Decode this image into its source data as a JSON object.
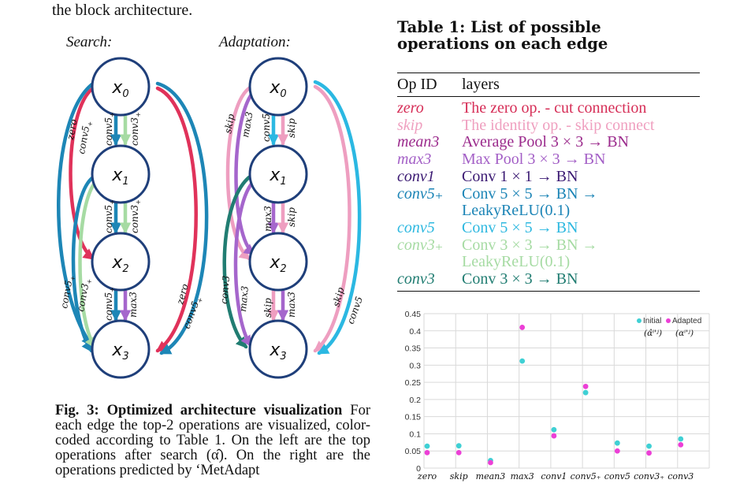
{
  "top_text": "the block architecture.",
  "diagram": {
    "search_label": "Search:",
    "adaptation_label": "Adaptation:",
    "nodes": [
      "x",
      "x",
      "x",
      "x"
    ],
    "node_subs": [
      "0",
      "1",
      "2",
      "3"
    ],
    "search_edges": {
      "e01_left": "conv5",
      "e01_left_sub": "+",
      "e01_right": "conv3",
      "e01_right_sub": "+",
      "e12_left": "conv5",
      "e12_left_sub": "+",
      "e12_right": "conv3",
      "e12_right_sub": "+",
      "e23_left": "conv5",
      "e23_left_sub": "+",
      "e23_right": "max3",
      "far_left_1": "zero",
      "far_left_2": "conv5",
      "far_left_2_sub": "+",
      "left_lower_1": "conv5",
      "left_lower_1_sub": "+",
      "left_lower_2": "conv3",
      "left_lower_2_sub": "+",
      "right_1": "zero",
      "right_2": "conv5",
      "right_2_sub": "+"
    },
    "adapt_edges": {
      "far_left_1": "skip",
      "far_left_2": "max3",
      "e01_left": "conv5",
      "e01_right": "skip",
      "e12_left": "max3",
      "e12_right": "skip",
      "left_lower_1": "conv3",
      "left_lower_2": "max3",
      "e23_left": "skip",
      "e23_right": "max3",
      "right_1": "skip",
      "right_2": "conv5"
    },
    "colors": {
      "zero": "#e0325a",
      "skip": "#ee9ec0",
      "max3": "#a566cc",
      "conv5plus": "#1d86b6",
      "conv5": "#2bb8e2",
      "conv3plus": "#a6dba3",
      "conv3": "#217d72",
      "node_stroke": "#1f3f7a"
    }
  },
  "caption": {
    "bold": "Fig. 3: Optimized architecture visualization",
    "text": " For each edge the top-2 operations are visualized, color-coded according to Table 1. On the left are the top operations after search (α̂). On the right are the operations predicted by ‘MetAdapt"
  },
  "table": {
    "title": "Table 1: List of possible operations on each edge",
    "header_op": "Op ID",
    "header_layers": "layers",
    "rows": [
      {
        "id": "zero",
        "layers": "The zero op. - cut connection",
        "color": "#d62e57"
      },
      {
        "id": "skip",
        "layers": "The identity op. - skip connect",
        "color": "#ef9fbf"
      },
      {
        "id": "mean3",
        "layers": "Average Pool 3 × 3 → BN",
        "color": "#9b2a8c"
      },
      {
        "id": "max3",
        "layers": "Max Pool 3 × 3 → BN",
        "color": "#a35fc6"
      },
      {
        "id": "conv1",
        "layers": "Conv 1 × 1 → BN",
        "color": "#3b1a73"
      },
      {
        "id": "conv5₊",
        "layers": "Conv 5 × 5 → BN →",
        "color": "#1b84b6"
      },
      {
        "id": "",
        "layers": "LeakyReLU(0.1)",
        "color": "#1b84b6"
      },
      {
        "id": "conv5",
        "layers": "Conv 5 × 5 → BN",
        "color": "#2db8e0"
      },
      {
        "id": "conv3₊",
        "layers": "Conv 3 × 3 → BN →",
        "color": "#a6dba3"
      },
      {
        "id": "",
        "layers": "LeakyReLU(0.1)",
        "color": "#a6dba3"
      },
      {
        "id": "conv3",
        "layers": "Conv 3 × 3 → BN",
        "color": "#217d72"
      }
    ]
  },
  "chart_data": {
    "type": "scatter",
    "categories": [
      "zero",
      "skip",
      "mean3",
      "max3",
      "conv1",
      "conv5₊",
      "conv5",
      "conv3₊",
      "conv3"
    ],
    "series": [
      {
        "name": "Initial",
        "sub": "(α̂ⁱ'ʲ)",
        "color": "#3fd0d4",
        "values": [
          0.064,
          0.065,
          0.022,
          0.312,
          0.112,
          0.22,
          0.073,
          0.064,
          0.085
        ]
      },
      {
        "name": "Adapted",
        "sub": "(αⁱ'ʲ)",
        "color": "#ec3fd6",
        "values": [
          0.045,
          0.045,
          0.016,
          0.41,
          0.094,
          0.238,
          0.05,
          0.044,
          0.068
        ]
      }
    ],
    "ylim": [
      0,
      0.45
    ],
    "yticks": [
      "0",
      "0.05",
      "0.1",
      "0.15",
      "0.2",
      "0.25",
      "0.3",
      "0.35",
      "0.4",
      "0.45"
    ],
    "grid": true,
    "legend": "top-right"
  }
}
